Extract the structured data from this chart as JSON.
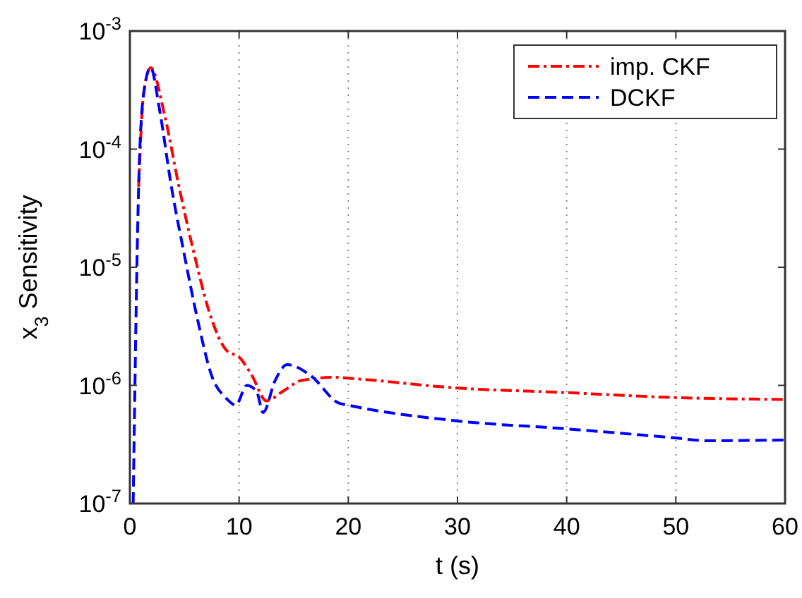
{
  "chart_data": {
    "type": "line",
    "xlabel": "t (s)",
    "ylabel": "x$_{3}$ Sensitivity",
    "log": "y",
    "grid": "x",
    "legend": "top right",
    "xlim": [
      0,
      60
    ],
    "ylim": [
      1e-07,
      0.001
    ],
    "xticks": [
      0,
      10,
      20,
      30,
      40,
      50,
      60
    ],
    "yticks": [
      {
        "value": 1e-07,
        "label": "10$^{-7}$"
      },
      {
        "value": 1e-06,
        "label": "10$^{-6}$"
      },
      {
        "value": 1e-05,
        "label": "10$^{-5}$"
      },
      {
        "value": 0.0001,
        "label": "10$^{-4}$"
      },
      {
        "value": 0.001,
        "label": "10$^{-3}$"
      }
    ],
    "series": [
      {
        "name": "imp. CKF",
        "color": "#ff0000",
        "line_style": "dashdot",
        "x": [
          0.8,
          1.25,
          1.9,
          3.2,
          4.5,
          5.8,
          7.5,
          8.8,
          10.1,
          11.2,
          12.5,
          14,
          15.7,
          18.7,
          20,
          30,
          39.8,
          49.8,
          60
        ],
        "values": [
          4.8e-05,
          0.00029,
          0.00049,
          0.00019,
          4.8e-05,
          1.4e-05,
          3.6e-06,
          2e-06,
          1.7e-06,
          1.2e-06,
          7.4e-07,
          8.9e-07,
          1.1e-06,
          1.17e-06,
          1.15e-06,
          9.5e-07,
          8.7e-07,
          7.9e-07,
          7.6e-07
        ]
      },
      {
        "name": "DCKF",
        "color": "#0000ff",
        "line_style": "dashed",
        "x": [
          0.3,
          0.8,
          1.25,
          1.9,
          2.7,
          3.8,
          4.9,
          6.2,
          7.5,
          8.8,
          9.7,
          10.7,
          11.6,
          12.2,
          13.3,
          14.4,
          16.6,
          19.1,
          20,
          30,
          39.8,
          49.8,
          52.8,
          60
        ],
        "values": [
          1e-07,
          4.8e-05,
          0.00029,
          0.00049,
          0.00022,
          4.8e-05,
          1.4e-05,
          3.6e-06,
          1.2e-06,
          7.8e-07,
          6.8e-07,
          1e-06,
          8.9e-07,
          5.9e-07,
          1.1e-06,
          1.5e-06,
          1.2e-06,
          7.1e-07,
          6.8e-07,
          5e-07,
          4.3e-07,
          3.6e-07,
          3.4e-07,
          3.45e-07
        ]
      }
    ]
  }
}
